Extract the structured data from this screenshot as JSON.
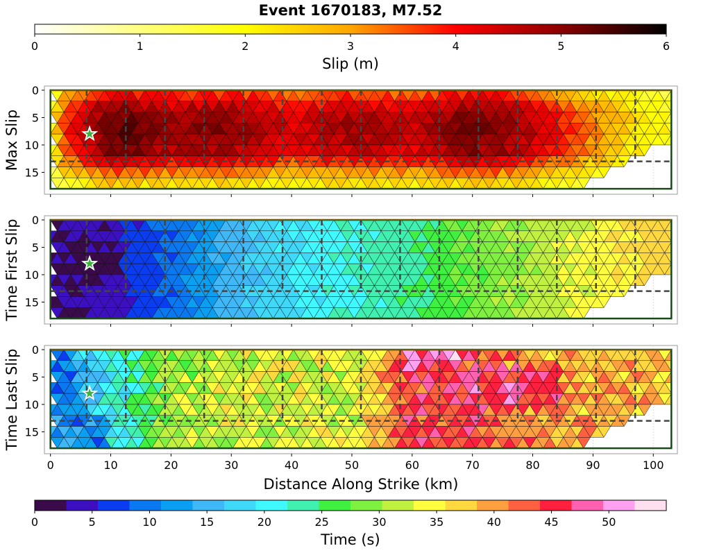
{
  "title": "Event 1670183, M7.52",
  "slip_colorbar": {
    "label": "Slip (m)",
    "range": [
      0,
      6
    ],
    "ticks": [
      "0",
      "1",
      "2",
      "3",
      "4",
      "5",
      "6"
    ],
    "colors": [
      "#ffffff",
      "#ffff80",
      "#ffff00",
      "#ffa500",
      "#ff0000",
      "#8b0000",
      "#000000"
    ]
  },
  "time_colorbar": {
    "label": "Time (s)",
    "range": [
      0,
      55
    ],
    "ticks": [
      "0",
      "5",
      "10",
      "15",
      "20",
      "25",
      "30",
      "35",
      "40",
      "45",
      "50"
    ],
    "colors": [
      "#3a0a4a",
      "#3c10c0",
      "#0a3cf0",
      "#0a78f0",
      "#0a9ff0",
      "#40b8f8",
      "#40d8f8",
      "#40f8ff",
      "#40f0b0",
      "#40f040",
      "#80f040",
      "#c0f040",
      "#ffff40",
      "#ffd840",
      "#ffa040",
      "#ff6040",
      "#ff2040",
      "#ff60b0",
      "#ffa0f0",
      "#ffe0f0"
    ]
  },
  "xaxis": {
    "label": "Distance Along Strike (km)",
    "ticks": [
      "0",
      "10",
      "20",
      "30",
      "40",
      "50",
      "60",
      "70",
      "80",
      "90",
      "100"
    ]
  },
  "yaxis": {
    "ticks": [
      "0",
      "5",
      "10",
      "15"
    ]
  },
  "chart_data": [
    {
      "type": "heatmap",
      "title": "Max Slip",
      "ylabel": "Max Slip",
      "xlim": [
        -1,
        104
      ],
      "ylim": [
        19,
        0
      ],
      "colorbar": "Slip (m)",
      "hypocenter": {
        "x": 6.5,
        "y": 8
      },
      "value_range": [
        0,
        6
      ],
      "description_values": {
        "columns_x": [
          0,
          10,
          20,
          30,
          40,
          50,
          60,
          70,
          80,
          90,
          100
        ],
        "max_slip_m": [
          3.2,
          5.4,
          4.9,
          5.0,
          4.3,
          4.8,
          4.5,
          5.3,
          4.6,
          3.2,
          2.0
        ]
      }
    },
    {
      "type": "heatmap",
      "title": "Time First Slip",
      "ylabel": "Time First Slip",
      "xlim": [
        -1,
        104
      ],
      "ylim": [
        19,
        0
      ],
      "colorbar": "Time (s)",
      "hypocenter": {
        "x": 6.5,
        "y": 8
      },
      "value_range": [
        0,
        55
      ],
      "description_values": {
        "columns_x": [
          0,
          10,
          20,
          30,
          40,
          50,
          60,
          70,
          80,
          90,
          100
        ],
        "time_s": [
          3,
          4,
          9,
          15,
          19,
          22,
          24,
          28,
          31,
          34,
          37
        ]
      }
    },
    {
      "type": "heatmap",
      "title": "Time Last Slip",
      "ylabel": "Time Last Slip",
      "xlim": [
        -1,
        104
      ],
      "ylim": [
        19,
        0
      ],
      "colorbar": "Time (s)",
      "hypocenter": {
        "x": 6.5,
        "y": 8
      },
      "value_range": [
        0,
        55
      ],
      "description_values": {
        "columns_x": [
          0,
          10,
          20,
          30,
          40,
          50,
          60,
          70,
          80,
          90,
          100
        ],
        "time_s": [
          12,
          20,
          30,
          33,
          33,
          33,
          45,
          44,
          40,
          39,
          38
        ]
      }
    }
  ]
}
